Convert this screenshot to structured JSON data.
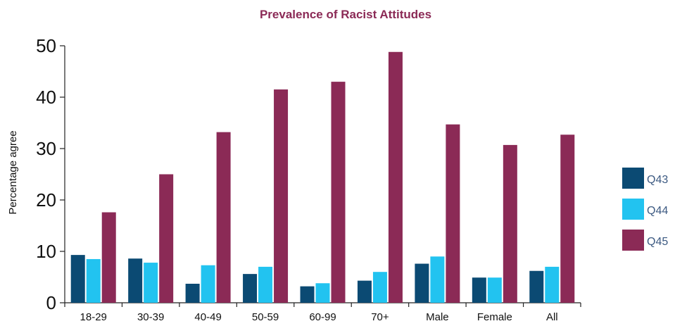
{
  "chart_data": {
    "type": "bar",
    "title": "Prevalence of Racist Attitudes",
    "xlabel": "",
    "ylabel": "Percentage agree",
    "ylim": [
      0,
      50
    ],
    "yticks": [
      0,
      10,
      20,
      30,
      40,
      50
    ],
    "categories": [
      "18-29",
      "30-39",
      "40-49",
      "50-59",
      "60-99",
      "70+",
      "Male",
      "Female",
      "All"
    ],
    "series": [
      {
        "name": "Q43",
        "color": "#0b4a73",
        "values": [
          9.3,
          8.6,
          3.7,
          5.6,
          3.2,
          4.3,
          7.6,
          4.9,
          6.2
        ]
      },
      {
        "name": "Q44",
        "color": "#22c3f0",
        "values": [
          8.5,
          7.8,
          7.3,
          7.0,
          3.8,
          6.0,
          9.0,
          4.9,
          7.0
        ]
      },
      {
        "name": "Q45",
        "color": "#8b2a56",
        "values": [
          17.6,
          25.0,
          33.2,
          41.5,
          43.0,
          48.8,
          34.7,
          30.7,
          32.7
        ]
      }
    ],
    "grid": false,
    "legend": "right"
  }
}
